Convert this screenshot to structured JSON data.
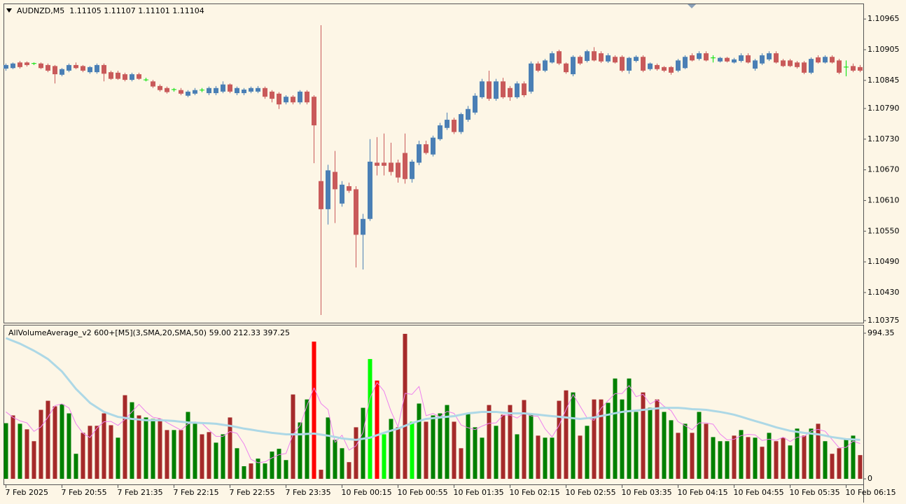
{
  "chart_data": [
    {
      "type": "candlestick",
      "title": "AUDNZD,M5  1.11105 1.11107 1.11101 1.11104",
      "open": [
        1.10868,
        1.10869,
        1.1088,
        1.1088,
        1.10878,
        1.10878,
        1.10875,
        1.10873,
        1.10856,
        1.10864,
        1.10875,
        1.10873,
        1.10861,
        1.10861,
        1.10875,
        1.10861,
        1.1086,
        1.10857,
        1.10846,
        1.10857,
        1.10846,
        1.10843,
        1.10834,
        1.1083,
        1.10827,
        1.10826,
        1.10815,
        1.10819,
        1.10826,
        1.1082,
        1.1082,
        1.10823,
        1.10837,
        1.1082,
        1.1082,
        1.10823,
        1.10823,
        1.1083,
        1.10823,
        1.10819,
        1.10802,
        1.10813,
        1.10802,
        1.10823,
        1.10813,
        1.10648,
        1.10593,
        1.10666,
        1.10604,
        1.10638,
        1.10632,
        1.10543,
        1.10574,
        1.10684,
        1.10684,
        1.10684,
        1.10684,
        1.10703,
        1.10652,
        1.10684,
        1.1072,
        1.107,
        1.1073,
        1.10752,
        1.10768,
        1.10744,
        1.10768,
        1.10782,
        1.10812,
        1.10843,
        1.10809,
        1.10843,
        1.1083,
        1.10812,
        1.10839,
        1.10823,
        1.10878,
        1.10864,
        1.1088,
        1.10902,
        1.10878,
        1.10857,
        1.10891,
        1.10883,
        1.10902,
        1.10898,
        1.10882,
        1.10891,
        1.10891,
        1.10864,
        1.10883,
        1.10891,
        1.10867,
        1.10875,
        1.10871,
        1.10871,
        1.10864,
        1.10869,
        1.10894,
        1.10887,
        1.10898,
        1.10889,
        1.10882,
        1.10889,
        1.1088,
        1.10883,
        1.10894,
        1.10868,
        1.10878,
        1.10886,
        1.10898,
        1.10884,
        1.10884,
        1.1088,
        1.1088,
        1.1086,
        1.1089,
        1.1088,
        1.10891,
        1.10884,
        1.10871,
        1.10873,
        1.10871
      ],
      "high": [
        1.10878,
        1.1088,
        1.10883,
        1.10882,
        1.1088,
        1.1088,
        1.10878,
        1.10875,
        1.10869,
        1.10878,
        1.1088,
        1.10875,
        1.10873,
        1.10878,
        1.10878,
        1.10864,
        1.10864,
        1.1086,
        1.1086,
        1.1086,
        1.1085,
        1.10846,
        1.10837,
        1.10833,
        1.1083,
        1.1083,
        1.10826,
        1.1083,
        1.1083,
        1.10833,
        1.10834,
        1.10843,
        1.10839,
        1.10833,
        1.1083,
        1.10833,
        1.10834,
        1.10833,
        1.10826,
        1.10822,
        1.10816,
        1.10816,
        1.10826,
        1.10826,
        1.10816,
        1.10953,
        1.1068,
        1.10707,
        1.10648,
        1.10645,
        1.10638,
        1.10584,
        1.1073,
        1.10734,
        1.10741,
        1.10723,
        1.1069,
        1.10741,
        1.1069,
        1.10727,
        1.10727,
        1.10737,
        1.10762,
        1.10782,
        1.10772,
        1.10782,
        1.10795,
        1.1082,
        1.10848,
        1.10864,
        1.10848,
        1.1085,
        1.10834,
        1.10843,
        1.10843,
        1.10882,
        1.10882,
        1.10887,
        1.10902,
        1.10905,
        1.1088,
        1.10894,
        1.10894,
        1.10905,
        1.1091,
        1.10902,
        1.10898,
        1.10894,
        1.10894,
        1.10891,
        1.10894,
        1.10894,
        1.1088,
        1.10878,
        1.10873,
        1.10873,
        1.10887,
        1.10894,
        1.10898,
        1.10902,
        1.10902,
        1.10894,
        1.10891,
        1.10891,
        1.10889,
        1.10898,
        1.10898,
        1.10887,
        1.10898,
        1.10902,
        1.10902,
        1.10887,
        1.10887,
        1.10883,
        1.10883,
        1.1089,
        1.10894,
        1.10894,
        1.10894,
        1.10887,
        1.10884,
        1.10878,
        1.10875
      ],
      "low": [
        1.10864,
        1.10867,
        1.10868,
        1.10872,
        1.10875,
        1.10867,
        1.10861,
        1.10839,
        1.10853,
        1.10861,
        1.10867,
        1.10861,
        1.10858,
        1.10858,
        1.10843,
        1.10846,
        1.10846,
        1.10843,
        1.10843,
        1.10846,
        1.10843,
        1.1083,
        1.10823,
        1.10819,
        1.10823,
        1.10816,
        1.10812,
        1.10816,
        1.10822,
        1.10816,
        1.10816,
        1.1082,
        1.1082,
        1.10816,
        1.10816,
        1.1082,
        1.1082,
        1.10809,
        1.10802,
        1.10789,
        1.10798,
        1.10798,
        1.10798,
        1.10798,
        1.10683,
        1.10386,
        1.10563,
        1.10566,
        1.10598,
        1.10625,
        1.10479,
        1.10475,
        1.1057,
        1.10659,
        1.10659,
        1.10659,
        1.10645,
        1.10643,
        1.10645,
        1.10679,
        1.107,
        1.10696,
        1.10727,
        1.10748,
        1.1074,
        1.1074,
        1.10764,
        1.10778,
        1.10809,
        1.10805,
        1.10805,
        1.10809,
        1.10805,
        1.10809,
        1.10812,
        1.10819,
        1.10861,
        1.10861,
        1.10878,
        1.10875,
        1.10858,
        1.10853,
        1.10875,
        1.1088,
        1.10882,
        1.10879,
        1.10879,
        1.10878,
        1.10861,
        1.10858,
        1.1088,
        1.10861,
        1.10864,
        1.10864,
        1.10861,
        1.10856,
        1.10861,
        1.10867,
        1.10882,
        1.10884,
        1.10882,
        1.1088,
        1.1088,
        1.1088,
        1.10878,
        1.1088,
        1.10878,
        1.10864,
        1.10875,
        1.10883,
        1.10878,
        1.10871,
        1.10871,
        1.10868,
        1.10857,
        1.10857,
        1.10878,
        1.10878,
        1.10878,
        1.10857,
        1.10853,
        1.10861,
        1.10861
      ],
      "close": [
        1.10875,
        1.10878,
        1.10871,
        1.10875,
        1.10878,
        1.10869,
        1.10864,
        1.10857,
        1.10867,
        1.10875,
        1.10869,
        1.10864,
        1.10871,
        1.10875,
        1.10858,
        1.10848,
        1.10848,
        1.10846,
        1.10857,
        1.10848,
        1.10846,
        1.10833,
        1.10826,
        1.10822,
        1.10827,
        1.10819,
        1.10823,
        1.10826,
        1.10826,
        1.1083,
        1.1083,
        1.10837,
        1.10823,
        1.1083,
        1.10827,
        1.1083,
        1.1083,
        1.10813,
        1.10809,
        1.10798,
        1.10813,
        1.10802,
        1.10823,
        1.10802,
        1.10757,
        1.10593,
        1.10669,
        1.10632,
        1.10641,
        1.10629,
        1.10543,
        1.10574,
        1.10686,
        1.10678,
        1.10678,
        1.10666,
        1.10655,
        1.10652,
        1.10686,
        1.1072,
        1.10703,
        1.10733,
        1.10757,
        1.10768,
        1.10744,
        1.10779,
        1.10789,
        1.10815,
        1.10843,
        1.10809,
        1.10843,
        1.10812,
        1.10812,
        1.10839,
        1.10816,
        1.10878,
        1.10864,
        1.10884,
        1.10898,
        1.10878,
        1.10861,
        1.10891,
        1.10878,
        1.10902,
        1.10884,
        1.10882,
        1.10894,
        1.1088,
        1.10864,
        1.10889,
        1.10891,
        1.10864,
        1.10878,
        1.10867,
        1.10864,
        1.1086,
        1.10884,
        1.10891,
        1.10884,
        1.10898,
        1.10884,
        1.10889,
        1.10889,
        1.10882,
        1.10886,
        1.10894,
        1.1088,
        1.10884,
        1.10894,
        1.10898,
        1.1088,
        1.10873,
        1.10873,
        1.10871,
        1.1086,
        1.10887,
        1.1088,
        1.10891,
        1.1088,
        1.1086,
        1.10871,
        1.10864,
        1.10864
      ],
      "up_color": "#4a7fb5",
      "down_color": "#c95a5a",
      "doji_color": "#00e000",
      "ylim": [
        1.10371,
        1.10994
      ],
      "yticks": [
        1.10965,
        1.10905,
        1.10845,
        {
          "value": 1.1079,
          "label": "1.10790"
        },
        {
          "value": 1.1073,
          "label": "1.10730"
        },
        {
          "value": 1.1067,
          "label": "1.10670"
        },
        {
          "value": 1.1061,
          "label": "1.10610"
        },
        {
          "value": 1.1055,
          "label": "1.10550"
        },
        {
          "value": 1.1049,
          "label": "1.10490"
        },
        {
          "value": 1.1043,
          "label": "1.10430"
        },
        1.10375
      ]
    },
    {
      "type": "bar",
      "title": "AllVolumeAverage_v2 600+[M5](3,SMA,20,SMA,50) 59.00 212.33 397.25",
      "categories": [
        "7 Feb 2025",
        null,
        null,
        null,
        null,
        null,
        null,
        null,
        "7 Feb 20:55",
        null,
        null,
        null,
        null,
        null,
        null,
        null,
        "7 Feb 21:35",
        null,
        null,
        null,
        null,
        null,
        null,
        null,
        "7 Feb 22:15",
        null,
        null,
        null,
        null,
        null,
        null,
        null,
        "7 Feb 22:55",
        null,
        null,
        null,
        null,
        null,
        null,
        null,
        "7 Feb 23:35",
        null,
        null,
        null,
        null,
        null,
        null,
        null,
        "10 Feb 00:15",
        null,
        null,
        null,
        null,
        null,
        null,
        null,
        "10 Feb 00:55",
        null,
        null,
        null,
        null,
        null,
        null,
        null,
        "10 Feb 01:35",
        null,
        null,
        null,
        null,
        null,
        null,
        null,
        "10 Feb 02:15",
        null,
        null,
        null,
        null,
        null,
        null,
        null,
        "10 Feb 02:55",
        null,
        null,
        null,
        null,
        null,
        null,
        null,
        "10 Feb 03:35",
        null,
        null,
        null,
        null,
        null,
        null,
        null,
        "10 Feb 04:15",
        null,
        null,
        null,
        null,
        null,
        null,
        null,
        "10 Feb 04:55",
        null,
        null,
        null,
        null,
        null,
        null,
        null,
        "10 Feb 05:35",
        null,
        null,
        null,
        null,
        null,
        null,
        null,
        "10 Feb 06:15",
        null,
        null
      ],
      "values": [
        380,
        433,
        376,
        338,
        257,
        471,
        533,
        495,
        509,
        447,
        171,
        314,
        362,
        362,
        447,
        366,
        281,
        571,
        523,
        433,
        419,
        409,
        409,
        333,
        333,
        333,
        457,
        376,
        304,
        319,
        247,
        304,
        419,
        209,
        86,
        105,
        138,
        105,
        186,
        205,
        128,
        576,
        385,
        542,
        937,
        62,
        419,
        266,
        209,
        114,
        352,
        485,
        818,
        671,
        304,
        409,
        352,
        990,
        390,
        514,
        390,
        433,
        447,
        504,
        390,
        209,
        447,
        352,
        281,
        504,
        362,
        438,
        504,
        304,
        538,
        447,
        295,
        281,
        281,
        533,
        604,
        590,
        295,
        362,
        542,
        542,
        519,
        685,
        542,
        685,
        457,
        590,
        485,
        542,
        457,
        400,
        314,
        376,
        314,
        457,
        376,
        285,
        257,
        257,
        295,
        333,
        285,
        281,
        219,
        314,
        257,
        281,
        228,
        343,
        295,
        343,
        376,
        257,
        171,
        209,
        266,
        295,
        162
      ],
      "colors": [
        "#008000",
        "#a52a2a",
        "#008000",
        "#a52a2a",
        "#a52a2a",
        "#a52a2a",
        "#a52a2a",
        "#a52a2a",
        "#008000",
        "#008000",
        "#008000",
        "#a52a2a",
        "#a52a2a",
        "#a52a2a",
        "#a52a2a",
        "#a52a2a",
        "#008000",
        "#a52a2a",
        "#008000",
        "#a52a2a",
        "#008000",
        "#008000",
        "#a52a2a",
        "#a52a2a",
        "#008000",
        "#a52a2a",
        "#008000",
        "#008000",
        "#a52a2a",
        "#a52a2a",
        "#008000",
        "#008000",
        "#a52a2a",
        "#008000",
        "#008000",
        "#a52a2a",
        "#008000",
        "#008000",
        "#008000",
        "#008000",
        "#008000",
        "#a52a2a",
        "#008000",
        "#008000",
        "#ff0000",
        "#a52a2a",
        "#008000",
        "#008000",
        "#008000",
        "#a52a2a",
        "#a52a2a",
        "#008000",
        "#00ff00",
        "#ff0000",
        "#00ff00",
        "#008000",
        "#a52a2a",
        "#a52a2a",
        "#00ff00",
        "#008000",
        "#a52a2a",
        "#008000",
        "#008000",
        "#008000",
        "#a52a2a",
        "#a52a2a",
        "#008000",
        "#008000",
        "#008000",
        "#a52a2a",
        "#008000",
        "#a52a2a",
        "#a52a2a",
        "#008000",
        "#a52a2a",
        "#008000",
        "#a52a2a",
        "#008000",
        "#008000",
        "#a52a2a",
        "#a52a2a",
        "#008000",
        "#a52a2a",
        "#008000",
        "#a52a2a",
        "#a52a2a",
        "#008000",
        "#008000",
        "#008000",
        "#008000",
        "#008000",
        "#a52a2a",
        "#008000",
        "#a52a2a",
        "#008000",
        "#008000",
        "#a52a2a",
        "#008000",
        "#a52a2a",
        "#008000",
        "#a52a2a",
        "#008000",
        "#008000",
        "#008000",
        "#a52a2a",
        "#008000",
        "#a52a2a",
        "#008000",
        "#a52a2a",
        "#008000",
        "#a52a2a",
        "#a52a2a",
        "#008000",
        "#008000",
        "#a52a2a",
        "#008000",
        "#a52a2a",
        "#008000",
        "#a52a2a",
        "#a52a2a",
        "#008000",
        "#008000",
        "#a52a2a"
      ],
      "lines": [
        {
          "color": "#ee82ee",
          "width": 1,
          "values": [
            457,
            420,
            396,
            382,
            324,
            355,
            420,
            500,
            512,
            484,
            376,
            311,
            282,
            346,
            390,
            392,
            365,
            406,
            458,
            509,
            458,
            420,
            412,
            384,
            358,
            333,
            374,
            389,
            379,
            333,
            290,
            290,
            323,
            311,
            238,
            133,
            110,
            116,
            143,
            165,
            173,
            303,
            363,
            501,
            621,
            514,
            473,
            249,
            298,
            196,
            225,
            317,
            552,
            658,
            598,
            461,
            355,
            584,
            577,
            631,
            431,
            446,
            423,
            461,
            447,
            368,
            349,
            336,
            360,
            379,
            382,
            435,
            435,
            415,
            449,
            430,
            427,
            341,
            286,
            365,
            473,
            576,
            496,
            416,
            400,
            482,
            534,
            582,
            582,
            637,
            561,
            577,
            511,
            539,
            495,
            466,
            390,
            363,
            335,
            382,
            382,
            373,
            306,
            266,
            270,
            295,
            304,
            300,
            262,
            271,
            263,
            284,
            255,
            284,
            289,
            327,
            338,
            325,
            268,
            212,
            215,
            257,
            241
          ]
        },
        {
          "color": "#add8e6",
          "width": 3,
          "values": [
            961,
            942,
            923,
            899,
            875,
            847,
            818,
            776,
            733,
            674,
            614,
            567,
            519,
            488,
            457,
            440,
            423,
            416,
            409,
            405,
            400,
            400,
            400,
            398,
            395,
            390,
            385,
            383,
            381,
            379,
            376,
            369,
            362,
            353,
            343,
            336,
            328,
            321,
            314,
            309,
            304,
            304,
            304,
            307,
            309,
            302,
            295,
            286,
            276,
            271,
            266,
            274,
            281,
            298,
            314,
            329,
            343,
            362,
            381,
            395,
            409,
            414,
            419,
            424,
            428,
            438,
            447,
            452,
            457,
            457,
            457,
            452,
            447,
            447,
            447,
            443,
            438,
            433,
            428,
            424,
            419,
            414,
            409,
            414,
            419,
            429,
            438,
            448,
            457,
            462,
            466,
            471,
            476,
            481,
            485,
            485,
            485,
            481,
            476,
            474,
            471,
            464,
            457,
            448,
            438,
            424,
            409,
            395,
            381,
            367,
            352,
            340,
            328,
            321,
            314,
            309,
            304,
            295,
            285,
            278,
            271,
            269,
            266
          ]
        }
      ],
      "ylim": [
        -38,
        1047
      ],
      "yticks": [
        0,
        994.35
      ]
    }
  ]
}
